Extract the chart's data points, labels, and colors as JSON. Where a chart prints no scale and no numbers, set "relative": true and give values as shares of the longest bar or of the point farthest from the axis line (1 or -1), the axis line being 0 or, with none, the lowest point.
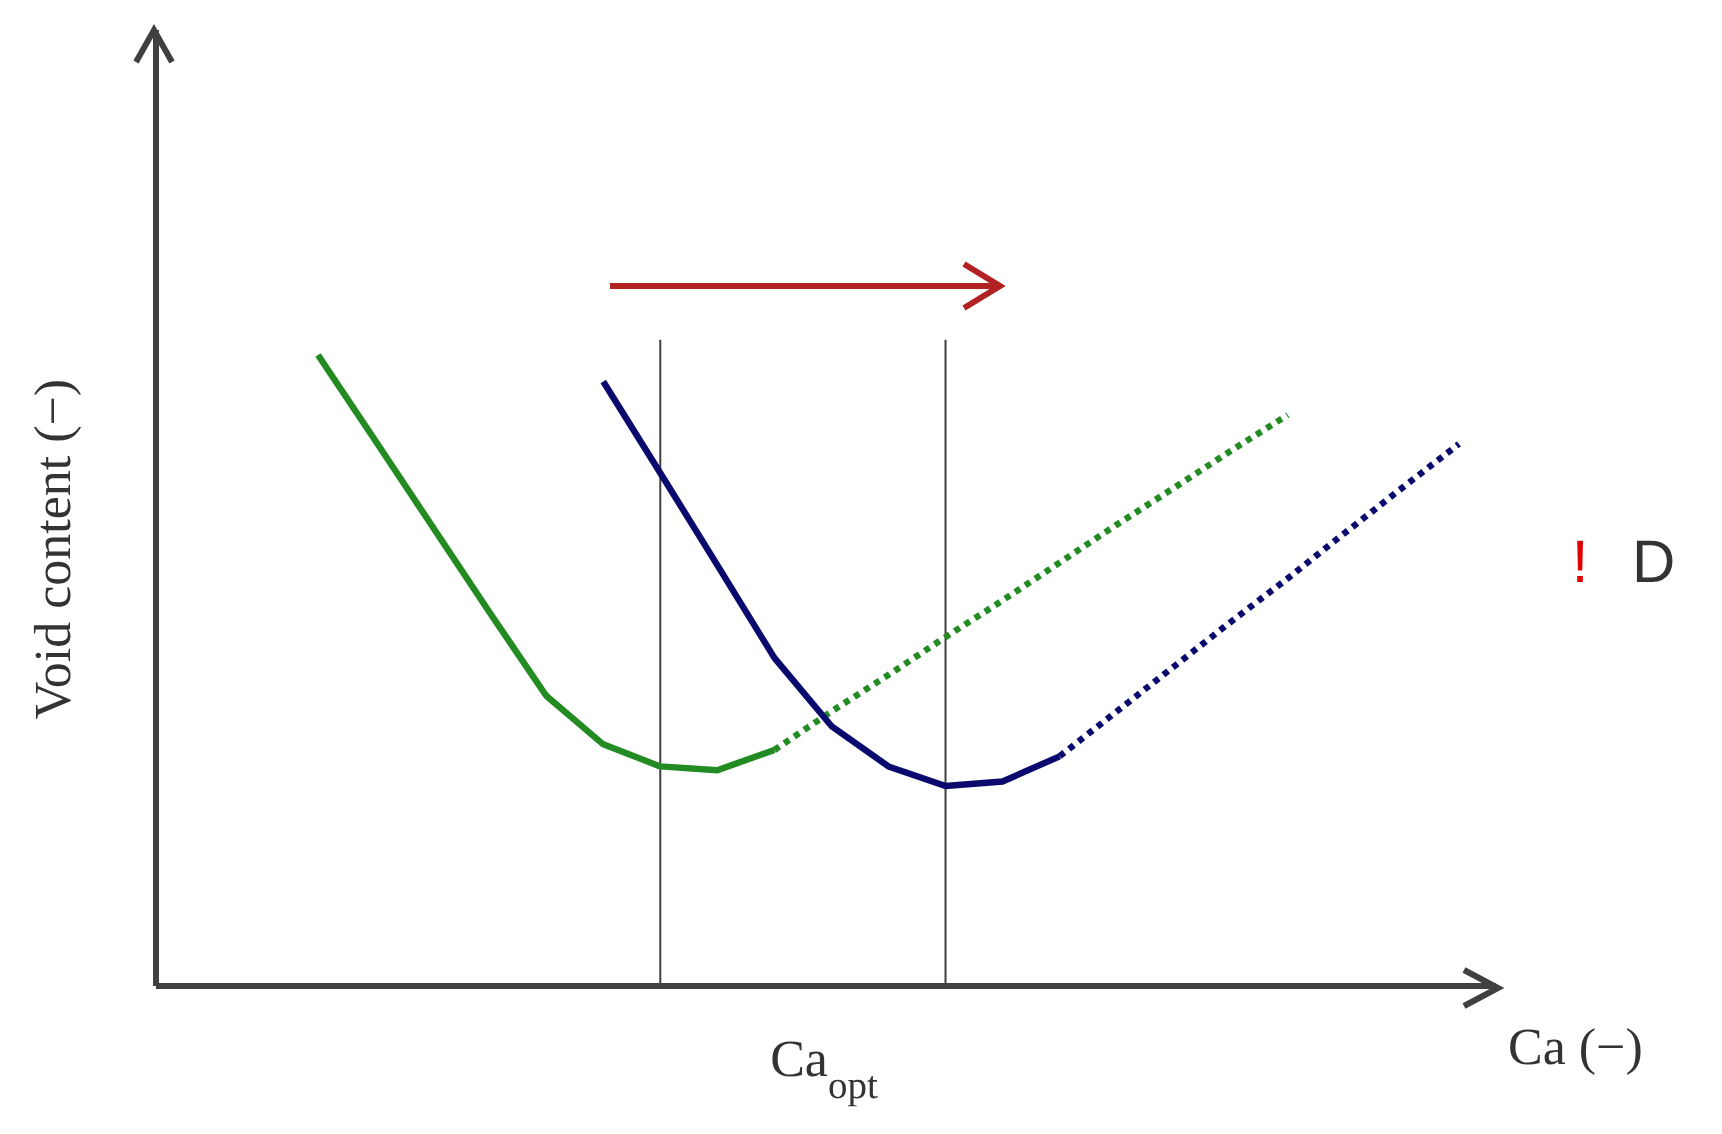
{
  "chart_data": {
    "type": "line",
    "relative": true,
    "xlabel": "Ca (−)",
    "ylabel": "Void content (−)",
    "categories": [
      null,
      null,
      null,
      null,
      null,
      null,
      null,
      null,
      null,
      null,
      null,
      null,
      null,
      null,
      null,
      null,
      null,
      null,
      null,
      null,
      null,
      null,
      null
    ],
    "series": [
      {
        "color": "#228b22",
        "line_style": "solid",
        "values": [
          null,
          null,
          1.0,
          0.865,
          0.729,
          0.593,
          0.46,
          0.383,
          0.348,
          0.342,
          0.374,
          null,
          null,
          null,
          null,
          null,
          null,
          null,
          null,
          null,
          null,
          null,
          null
        ]
      },
      {
        "color": "#228b22",
        "line_style": "dotted",
        "values": [
          null,
          null,
          null,
          null,
          null,
          null,
          null,
          null,
          null,
          null,
          0.374,
          0.435,
          0.493,
          0.553,
          0.611,
          0.671,
          0.731,
          0.789,
          0.848,
          0.905,
          null,
          null,
          null
        ]
      },
      {
        "color": "#0a0a6e",
        "line_style": "solid",
        "values": [
          null,
          null,
          null,
          null,
          null,
          null,
          null,
          0.958,
          0.813,
          0.667,
          0.52,
          0.412,
          0.348,
          0.317,
          0.324,
          0.364,
          null,
          null,
          null,
          null,
          null,
          null,
          null
        ]
      },
      {
        "color": "#0a0a6e",
        "line_style": "dotted",
        "values": [
          null,
          null,
          null,
          null,
          null,
          null,
          null,
          null,
          null,
          null,
          null,
          null,
          null,
          null,
          null,
          0.364,
          0.435,
          0.506,
          0.577,
          0.646,
          0.718,
          0.789,
          0.859
        ]
      }
    ],
    "annotations": [
      "Ca$_{opt}$",
      "!",
      "D"
    ]
  }
}
